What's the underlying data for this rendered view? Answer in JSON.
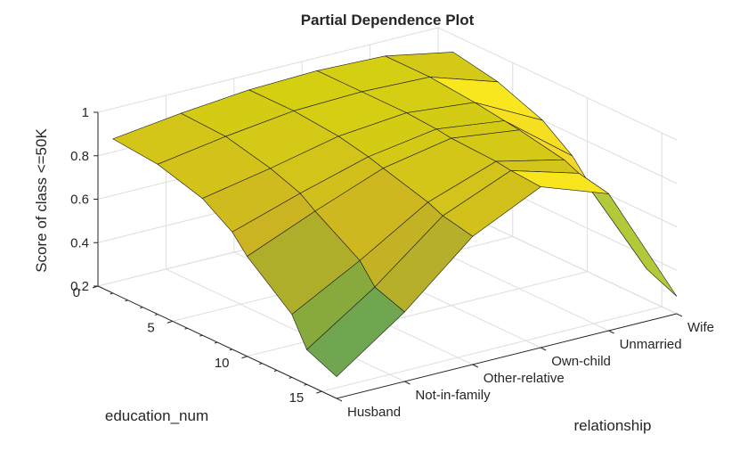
{
  "chart_data": {
    "type": "surface",
    "title": "Partial Dependence Plot",
    "xlabel": "relationship",
    "ylabel": "education_num",
    "zlabel": "Score of class <=50K",
    "relationship_categories": [
      "Husband",
      "Not-in-family",
      "Other-relative",
      "Own-child",
      "Unmarried",
      "Wife"
    ],
    "education_num_ticks": [
      "0",
      "5",
      "10",
      "15"
    ],
    "z_ticks": [
      "0.2",
      "0.4",
      "0.6",
      "0.8",
      "1"
    ],
    "education_num_values": [
      1,
      4,
      7,
      9,
      10,
      13,
      14,
      16
    ],
    "scores_by_relationship": [
      {
        "relationship": "Husband",
        "values": [
          0.91,
          0.89,
          0.83,
          0.74,
          0.66,
          0.49,
          0.36,
          0.3
        ]
      },
      {
        "relationship": "Not-in-family",
        "values": [
          0.95,
          0.94,
          0.89,
          0.84,
          0.79,
          0.66,
          0.57,
          0.52
        ]
      },
      {
        "relationship": "Other-relative",
        "values": [
          0.98,
          0.98,
          0.96,
          0.93,
          0.91,
          0.85,
          0.82,
          0.79
        ]
      },
      {
        "relationship": "Own-child",
        "values": [
          0.99,
          0.99,
          0.99,
          0.98,
          0.97,
          0.96,
          0.95,
          0.94
        ]
      },
      {
        "relationship": "Unmarried",
        "values": [
          0.98,
          0.98,
          0.96,
          0.94,
          0.93,
          0.89,
          0.86,
          0.83
        ]
      },
      {
        "relationship": "Wife",
        "values": [
          0.92,
          0.88,
          0.8,
          0.7,
          0.62,
          0.45,
          0.34,
          0.28
        ]
      }
    ],
    "zlim": [
      0.2,
      1
    ],
    "education_num_lim": [
      0,
      16
    ],
    "grid": true,
    "colormap": "parula"
  }
}
